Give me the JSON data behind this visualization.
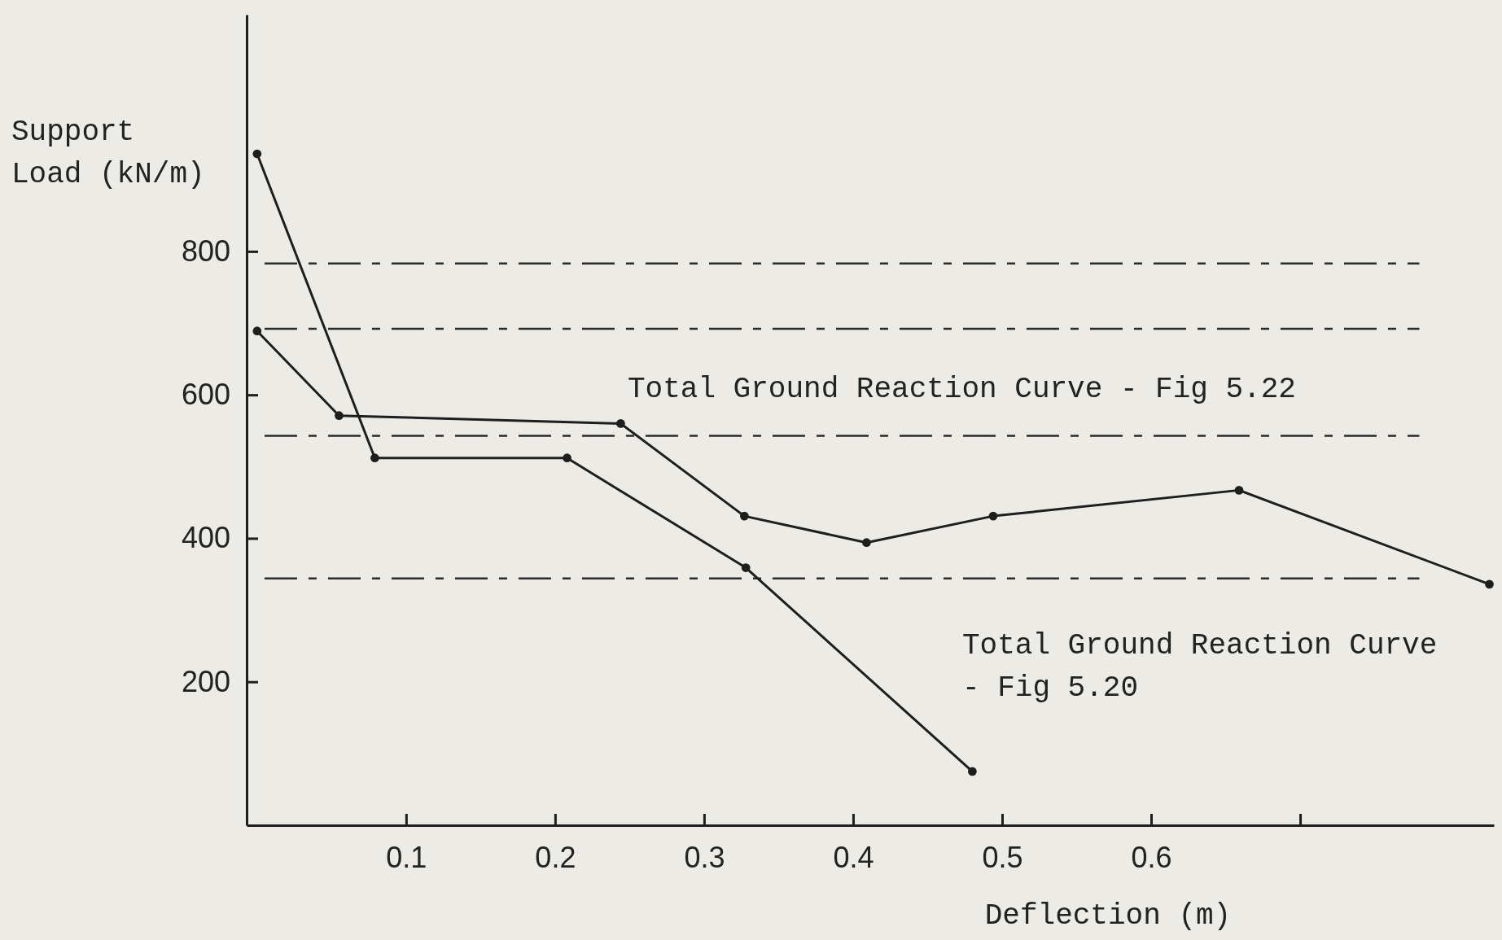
{
  "chart_data": {
    "type": "line",
    "xlabel": "Deflection (m)",
    "ylabel": "Support Load (kN/m)",
    "xlim": [
      -0.007,
      0.83
    ],
    "xticks": [
      0.1,
      0.2,
      0.3,
      0.4,
      0.5,
      0.6,
      {
        "value": 0.7,
        "label": null
      }
    ],
    "ylim": [
      0,
      1130
    ],
    "yticks": [
      200,
      400,
      600,
      800
    ],
    "grid": false,
    "marker": "circle",
    "line_style": "solid",
    "series": [
      {
        "color": "#1e1e1e",
        "x": [
          0,
          0.079,
          0.208,
          0.328,
          0.48
        ],
        "values": [
          936,
          512,
          512,
          359,
          75
        ]
      },
      {
        "color": "#1e1e1e",
        "x": [
          0,
          0.055,
          0.244,
          0.327,
          0.409,
          0.494,
          0.659,
          0.827
        ],
        "values": [
          689,
          571,
          560,
          431,
          394,
          431,
          467,
          336
        ]
      }
    ],
    "ref_lines": [
      {
        "axis": "y",
        "value": 783,
        "color": "#2a2a2a",
        "line_style": "dashed"
      },
      {
        "axis": "y",
        "value": 692,
        "color": "#2a2a2a",
        "line_style": "dashed"
      },
      {
        "axis": "y",
        "value": 543,
        "color": "#2a2a2a",
        "line_style": "dashed"
      },
      {
        "axis": "y",
        "value": 344,
        "color": "#2a2a2a",
        "line_style": "dashed"
      }
    ],
    "annotations": [
      "Total Ground Reaction Curve - Fig 5.22",
      "Total Ground Reaction Curve - Fig 5.20"
    ]
  }
}
